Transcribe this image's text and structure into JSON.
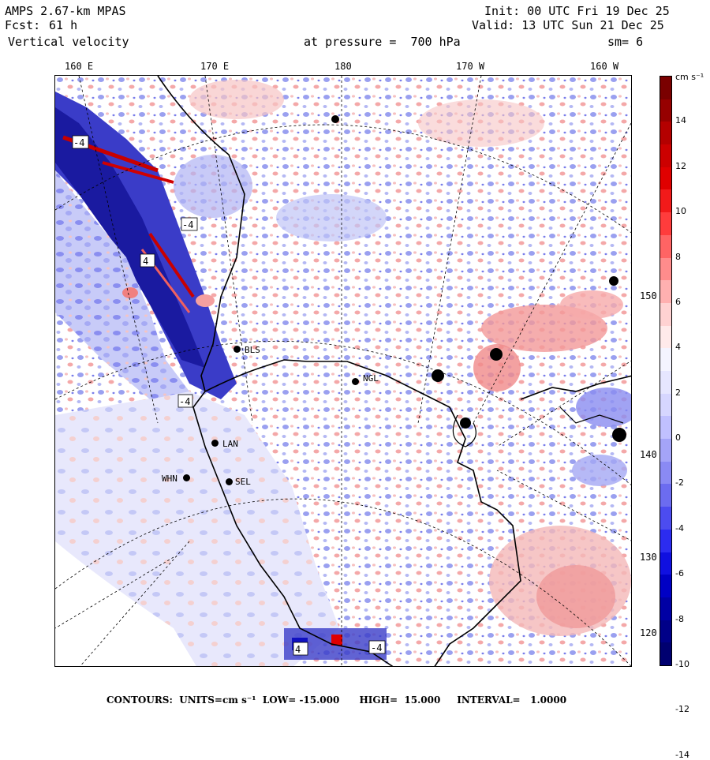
{
  "header": {
    "model": "AMPS 2.67-km MPAS",
    "fcst_label": "Fcst:",
    "fcst_value": "61 h",
    "field": "Vertical velocity",
    "init": "Init: 00 UTC Fri 19 Dec 25",
    "valid": "Valid: 13 UTC Sun 21 Dec 25",
    "level": "at pressure =  700 hPa",
    "smoothing": "sm= 6"
  },
  "longitude_labels": [
    "160 E",
    "170 E",
    "180",
    "170 W",
    "160 W"
  ],
  "latitude_labels": [
    "150 W",
    "140 W",
    "130 W",
    "120 W"
  ],
  "colorbar": {
    "units": "cm s⁻¹",
    "ticks": [
      "14",
      "12",
      "10",
      "8",
      "6",
      "4",
      "2",
      "0",
      "-2",
      "-4",
      "-6",
      "-8",
      "-10",
      "-12",
      "-14"
    ],
    "colors": [
      "#7a0000",
      "#960000",
      "#b40000",
      "#cc0000",
      "#e00000",
      "#f21a1a",
      "#ff3c3c",
      "#ff6464",
      "#ff8c8c",
      "#ffb0b0",
      "#ffd2d2",
      "#ffeaea",
      "#f4f4ff",
      "#e6e6ff",
      "#d6d6ff",
      "#c0c0ff",
      "#a4a4f8",
      "#8a8af4",
      "#6c6cf0",
      "#4c4cf0",
      "#2c2cf0",
      "#1010e0",
      "#0000c4",
      "#0000a4",
      "#000088",
      "#000070"
    ]
  },
  "stations": [
    {
      "code": "BLS"
    },
    {
      "code": "NGL"
    },
    {
      "code": "LAN"
    },
    {
      "code": "WHN"
    },
    {
      "code": "SEL"
    }
  ],
  "contour_labels": [
    "-4",
    "4",
    "-4",
    "-4",
    "4",
    "-4"
  ],
  "footer": {
    "contours_label": "CONTOURS:",
    "units": "UNITS=cm s⁻¹",
    "low": "LOW= -15.000",
    "high": "HIGH=  15.000",
    "interval": "INTERVAL=   1.0000"
  },
  "colors": {
    "up": "#f4a0a0",
    "down": "#8a8cf0",
    "neutral": "#ececff",
    "strong_down": "#1a1aa0"
  }
}
